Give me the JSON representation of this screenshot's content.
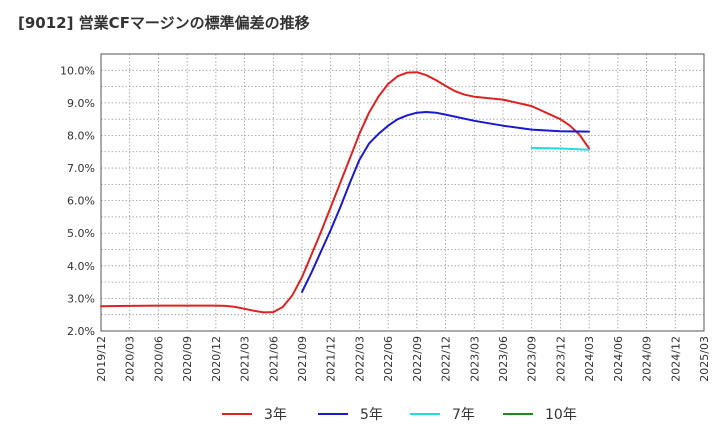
{
  "chart_data": {
    "type": "line",
    "title": "[9012]  営業CFマージンの標準偏差の推移",
    "xlabel": "",
    "ylabel": "",
    "x_ticks": [
      "2019/12",
      "2020/03",
      "2020/06",
      "2020/09",
      "2020/12",
      "2021/03",
      "2021/06",
      "2021/09",
      "2021/12",
      "2022/03",
      "2022/06",
      "2022/09",
      "2022/12",
      "2023/03",
      "2023/06",
      "2023/09",
      "2023/12",
      "2024/03",
      "2024/06",
      "2024/09",
      "2024/12",
      "2025/03"
    ],
    "y_ticks": [
      "2.0%",
      "3.0%",
      "4.0%",
      "5.0%",
      "6.0%",
      "7.0%",
      "8.0%",
      "9.0%",
      "10.0%"
    ],
    "ylim": [
      2.0,
      10.5
    ],
    "xlim": [
      "2019/12",
      "2025/03"
    ],
    "grid": true,
    "legend_position": "bottom",
    "series": [
      {
        "name": "3年",
        "color": "#dd2222",
        "points": [
          [
            "2019/12",
            2.76
          ],
          [
            "2020/03",
            2.77
          ],
          [
            "2020/06",
            2.78
          ],
          [
            "2020/09",
            2.78
          ],
          [
            "2020/12",
            2.78
          ],
          [
            "2021/01",
            2.77
          ],
          [
            "2021/02",
            2.74
          ],
          [
            "2021/03",
            2.68
          ],
          [
            "2021/04",
            2.62
          ],
          [
            "2021/05",
            2.57
          ],
          [
            "2021/06",
            2.58
          ],
          [
            "2021/07",
            2.74
          ],
          [
            "2021/08",
            3.1
          ],
          [
            "2021/09",
            3.65
          ],
          [
            "2021/10",
            4.35
          ],
          [
            "2021/11",
            5.05
          ],
          [
            "2021/12",
            5.8
          ],
          [
            "2022/01",
            6.55
          ],
          [
            "2022/02",
            7.3
          ],
          [
            "2022/03",
            8.05
          ],
          [
            "2022/04",
            8.7
          ],
          [
            "2022/05",
            9.2
          ],
          [
            "2022/06",
            9.58
          ],
          [
            "2022/07",
            9.82
          ],
          [
            "2022/08",
            9.93
          ],
          [
            "2022/09",
            9.94
          ],
          [
            "2022/10",
            9.85
          ],
          [
            "2022/11",
            9.7
          ],
          [
            "2022/12",
            9.52
          ],
          [
            "2023/01",
            9.36
          ],
          [
            "2023/02",
            9.25
          ],
          [
            "2023/03",
            9.19
          ],
          [
            "2023/06",
            9.1
          ],
          [
            "2023/09",
            8.9
          ],
          [
            "2023/12",
            8.5
          ],
          [
            "2024/01",
            8.3
          ],
          [
            "2024/02",
            8.02
          ],
          [
            "2024/03",
            7.6
          ]
        ]
      },
      {
        "name": "5年",
        "color": "#1a1acc",
        "points": [
          [
            "2021/09",
            3.2
          ],
          [
            "2021/10",
            3.8
          ],
          [
            "2021/11",
            4.45
          ],
          [
            "2021/12",
            5.1
          ],
          [
            "2022/01",
            5.8
          ],
          [
            "2022/02",
            6.55
          ],
          [
            "2022/03",
            7.25
          ],
          [
            "2022/04",
            7.75
          ],
          [
            "2022/05",
            8.05
          ],
          [
            "2022/06",
            8.3
          ],
          [
            "2022/07",
            8.5
          ],
          [
            "2022/08",
            8.62
          ],
          [
            "2022/09",
            8.7
          ],
          [
            "2022/10",
            8.72
          ],
          [
            "2022/11",
            8.7
          ],
          [
            "2022/12",
            8.64
          ],
          [
            "2023/03",
            8.45
          ],
          [
            "2023/06",
            8.3
          ],
          [
            "2023/09",
            8.18
          ],
          [
            "2023/12",
            8.13
          ],
          [
            "2024/03",
            8.12
          ]
        ]
      },
      {
        "name": "7年",
        "color": "#22dddd",
        "points": [
          [
            "2023/09",
            7.62
          ],
          [
            "2023/12",
            7.6
          ],
          [
            "2024/03",
            7.56
          ]
        ]
      },
      {
        "name": "10年",
        "color": "#228822",
        "points": []
      }
    ]
  }
}
